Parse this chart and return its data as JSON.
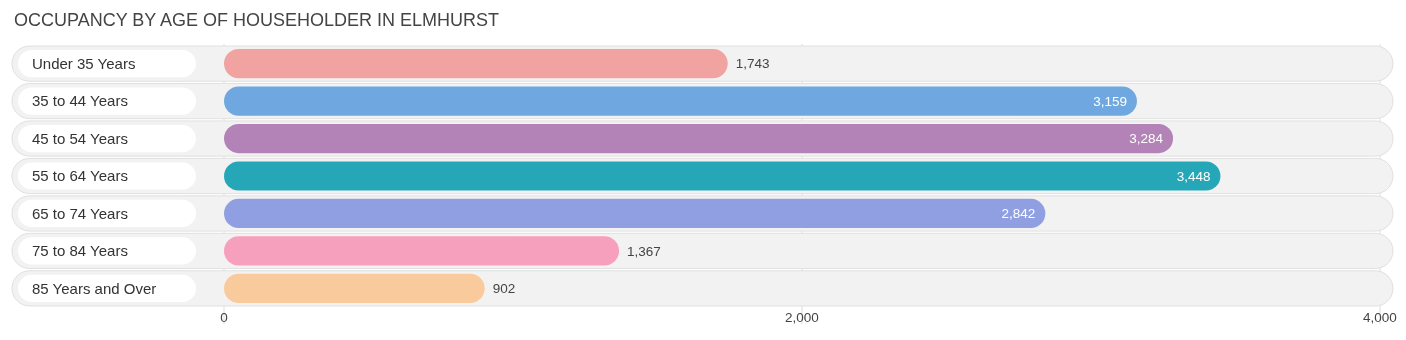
{
  "chart_data": {
    "type": "bar",
    "orientation": "horizontal",
    "title": "OCCUPANCY BY AGE OF HOUSEHOLDER IN ELMHURST",
    "categories": [
      "Under 35 Years",
      "35 to 44 Years",
      "45 to 54 Years",
      "55 to 64 Years",
      "65 to 74 Years",
      "75 to 84 Years",
      "85 Years and Over"
    ],
    "values": [
      1743,
      3159,
      3284,
      3448,
      2842,
      1367,
      902
    ],
    "colors": [
      "#f0a3a0",
      "#6fa8e0",
      "#b383b7",
      "#26a7b8",
      "#8f9fe2",
      "#f7a0bd",
      "#f9cb9c"
    ],
    "xlim": [
      0,
      4000
    ],
    "xticks": [
      {
        "value": 0,
        "label": "0"
      },
      {
        "value": 2000,
        "label": "2,000"
      },
      {
        "value": 4000,
        "label": "4,000"
      }
    ],
    "value_labels": [
      "1,743",
      "3,159",
      "3,284",
      "3,448",
      "2,842",
      "1,367",
      "902"
    ],
    "grid": "x"
  }
}
